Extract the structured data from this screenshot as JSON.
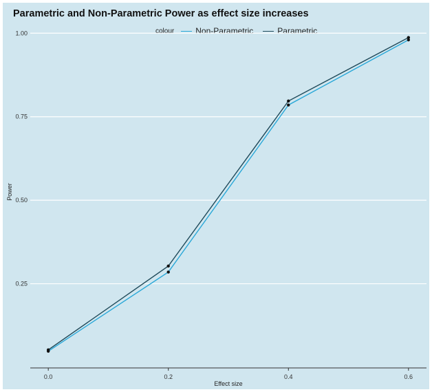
{
  "title": "Parametric and Non-Parametric Power as effect size increases",
  "legend": {
    "title": "colour",
    "items": [
      {
        "label": "Non-Parametric",
        "color": "#29a8d8"
      },
      {
        "label": "Parametric",
        "color": "#1f4a5a"
      }
    ]
  },
  "colors": {
    "background": "#d0e6ef",
    "grid": "#ffffff",
    "axis": "#333333",
    "point": "#111111"
  },
  "chart_data": {
    "type": "line",
    "title": "Parametric and Non-Parametric Power as effect size increases",
    "xlabel": "Effect size",
    "ylabel": "Power",
    "x": [
      0.0,
      0.2,
      0.4,
      0.6
    ],
    "x_ticks": [
      "0.0",
      "0.2",
      "0.4",
      "0.6"
    ],
    "y_ticks": [
      "0.25",
      "0.50",
      "0.75",
      "1.00"
    ],
    "xlim": [
      -0.03,
      0.63
    ],
    "ylim": [
      0.0,
      1.05
    ],
    "grid": "horizontal",
    "legend_position": "top",
    "series": [
      {
        "name": "Non-Parametric",
        "values": [
          0.048,
          0.285,
          0.785,
          0.98
        ]
      },
      {
        "name": "Parametric",
        "values": [
          0.052,
          0.303,
          0.797,
          0.987
        ]
      }
    ]
  }
}
